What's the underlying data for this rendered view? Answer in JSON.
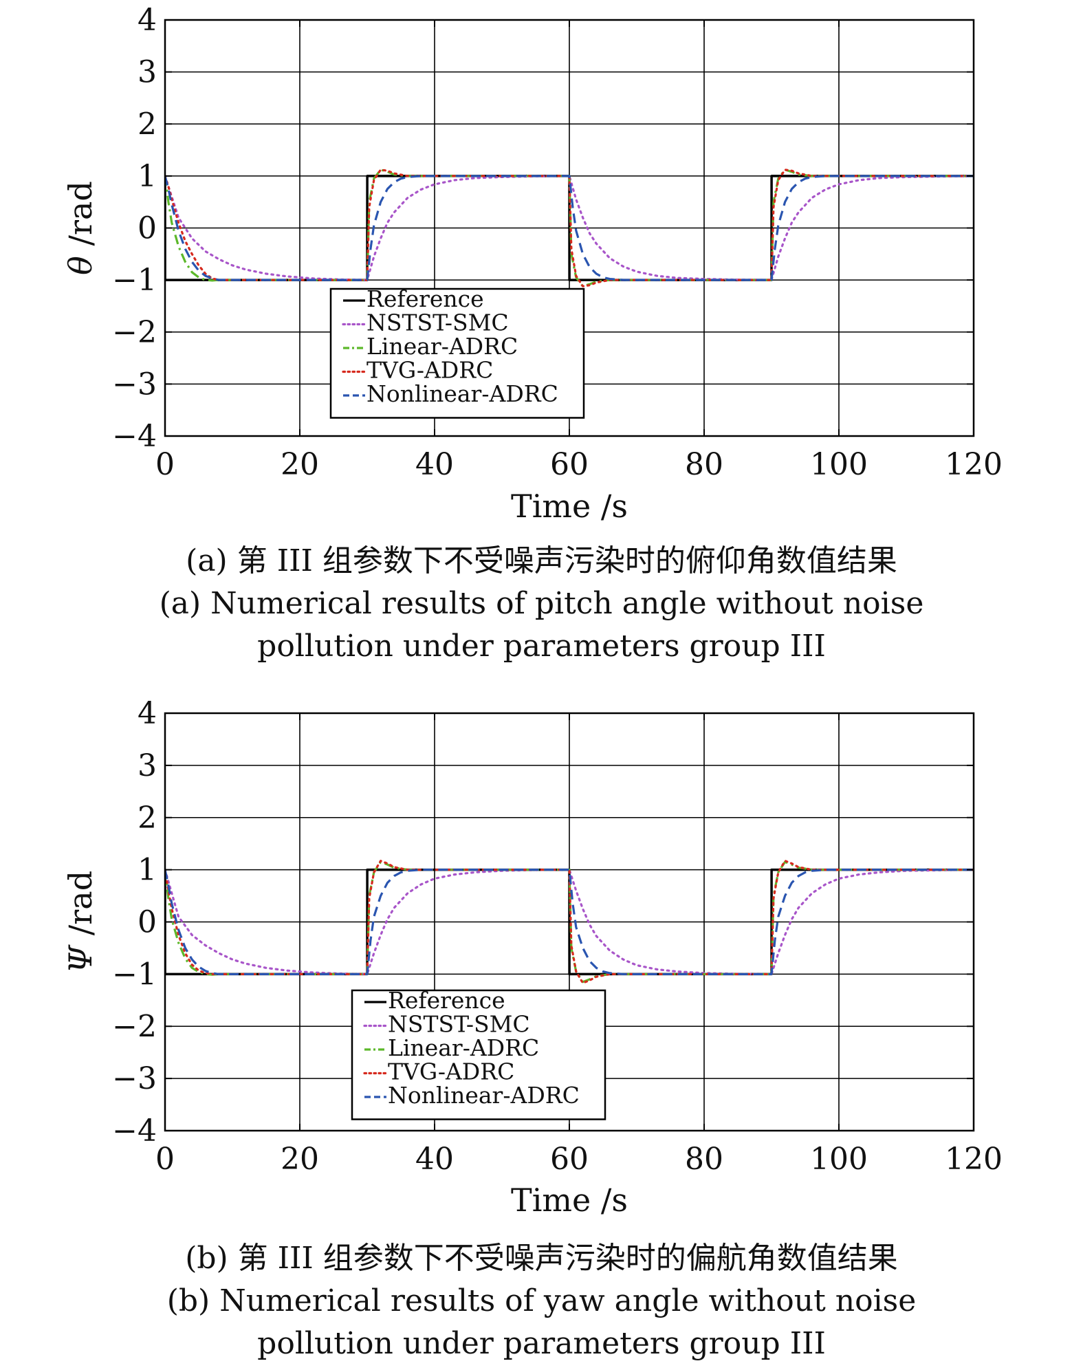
{
  "chart_data": [
    {
      "type": "line",
      "xlabel": "Time /s",
      "ylabel_symbol": "θ",
      "ylabel_unit": " /rad",
      "xlim": [
        0,
        120
      ],
      "ylim": [
        -4,
        4
      ],
      "xticks": [
        0,
        20,
        40,
        60,
        80,
        100,
        120
      ],
      "yticks": [
        -4,
        -3,
        -2,
        -1,
        0,
        1,
        2,
        3,
        4
      ],
      "grid": true,
      "legend_position": "lower-center",
      "caption_zh": "(a) 第 III 组参数下不受噪声污染时的俯仰角数值结果",
      "caption_en_line1": "(a) Numerical results of pitch angle without noise",
      "caption_en_line2": "pollution under  parameters group III",
      "series": [
        {
          "name": "Reference",
          "color": "#000000",
          "dash": "solid",
          "x": [
            0,
            0.01,
            30,
            30.01,
            60,
            60.01,
            90,
            90.01,
            120
          ],
          "y": [
            1,
            -1,
            -1,
            1,
            1,
            -1,
            -1,
            1,
            1
          ]
        },
        {
          "name": "NSTST-SMC",
          "color": "#a855c9",
          "dash": "dotted",
          "x": [
            0,
            2,
            4,
            6,
            8,
            10,
            12,
            15,
            18,
            22,
            26,
            30,
            31,
            32,
            33,
            34,
            36,
            38,
            40,
            43,
            46,
            50,
            55,
            60,
            61,
            62,
            63,
            64,
            66,
            68,
            70,
            73,
            76,
            80,
            85,
            90,
            91,
            92,
            93,
            94,
            96,
            98,
            100,
            103,
            106,
            110,
            120
          ],
          "y": [
            1,
            0.2,
            -0.2,
            -0.45,
            -0.6,
            -0.72,
            -0.8,
            -0.88,
            -0.93,
            -0.97,
            -0.99,
            -1,
            -0.55,
            -0.2,
            0.1,
            0.3,
            0.58,
            0.74,
            0.84,
            0.92,
            0.96,
            0.98,
            0.995,
            1,
            0.55,
            0.2,
            -0.1,
            -0.3,
            -0.58,
            -0.74,
            -0.84,
            -0.92,
            -0.96,
            -0.98,
            -0.995,
            -1,
            -0.55,
            -0.2,
            0.1,
            0.3,
            0.58,
            0.74,
            0.84,
            0.92,
            0.96,
            0.98,
            1
          ]
        },
        {
          "name": "Linear-ADRC",
          "color": "#5cb82a",
          "dash": "dashdot",
          "x": [
            0,
            0.5,
            1,
            2,
            3,
            4,
            5,
            6,
            7,
            8,
            10,
            30,
            30.3,
            31,
            32,
            33,
            34,
            36,
            38,
            40,
            60,
            60.3,
            61,
            62,
            63,
            64,
            66,
            68,
            70,
            90,
            90.3,
            91,
            92,
            93,
            94,
            96,
            98,
            100,
            120
          ],
          "y": [
            1,
            0.5,
            0.1,
            -0.35,
            -0.65,
            -0.85,
            -0.95,
            -1,
            -1.01,
            -1,
            -1,
            -1,
            0.5,
            0.95,
            1.12,
            1.08,
            1.03,
            1,
            1,
            1,
            1,
            -0.5,
            -0.95,
            -1.12,
            -1.08,
            -1.03,
            -1,
            -1,
            -1,
            -1,
            0.5,
            0.95,
            1.12,
            1.08,
            1.03,
            1,
            1,
            1,
            1
          ]
        },
        {
          "name": "TVG-ADRC",
          "color": "#d62a1e",
          "dash": "dotted",
          "x": [
            0,
            0.5,
            1,
            2,
            3,
            4,
            5,
            6,
            7,
            8,
            10,
            30,
            30.3,
            31,
            32,
            33,
            34,
            36,
            38,
            40,
            60,
            60.3,
            61,
            62,
            63,
            64,
            66,
            68,
            70,
            90,
            90.3,
            91,
            92,
            93,
            94,
            96,
            98,
            100,
            120
          ],
          "y": [
            1,
            0.8,
            0.55,
            0.1,
            -0.25,
            -0.5,
            -0.72,
            -0.88,
            -0.97,
            -1,
            -1,
            -1,
            0.4,
            0.92,
            1.12,
            1.1,
            1.05,
            1,
            1,
            1,
            1,
            -0.4,
            -0.92,
            -1.12,
            -1.1,
            -1.05,
            -1,
            -1,
            -1,
            -1,
            0.4,
            0.92,
            1.12,
            1.1,
            1.05,
            1,
            1,
            1,
            1
          ]
        },
        {
          "name": "Nonlinear-ADRC",
          "color": "#2a55b0",
          "dash": "dashed",
          "x": [
            0,
            0.5,
            1,
            2,
            3,
            4,
            5,
            6,
            7,
            8,
            10,
            30,
            30.5,
            31,
            32,
            33,
            34,
            35,
            36,
            38,
            40,
            60,
            60.5,
            61,
            62,
            63,
            64,
            65,
            66,
            68,
            70,
            90,
            90.5,
            91,
            92,
            93,
            94,
            95,
            96,
            98,
            100,
            120
          ],
          "y": [
            1,
            0.75,
            0.45,
            -0.05,
            -0.4,
            -0.65,
            -0.82,
            -0.92,
            -0.97,
            -1,
            -1,
            -1,
            -0.4,
            0.05,
            0.5,
            0.75,
            0.88,
            0.95,
            0.98,
            1,
            1,
            1,
            0.4,
            -0.05,
            -0.5,
            -0.75,
            -0.88,
            -0.95,
            -0.98,
            -1,
            -1,
            -1,
            -0.4,
            0.05,
            0.5,
            0.75,
            0.88,
            0.95,
            0.98,
            1,
            1,
            1
          ]
        }
      ]
    },
    {
      "type": "line",
      "xlabel": "Time /s",
      "ylabel_symbol": "Ψ",
      "ylabel_unit": " /rad",
      "xlim": [
        0,
        120
      ],
      "ylim": [
        -4,
        4
      ],
      "xticks": [
        0,
        20,
        40,
        60,
        80,
        100,
        120
      ],
      "yticks": [
        -4,
        -3,
        -2,
        -1,
        0,
        1,
        2,
        3,
        4
      ],
      "grid": true,
      "legend_position": "lower-center",
      "caption_zh": "(b) 第 III 组参数下不受噪声污染时的偏航角数值结果",
      "caption_en_line1": "(b) Numerical results of yaw angle without noise",
      "caption_en_line2": "pollution under  parameters group III",
      "series": [
        {
          "name": "Reference",
          "color": "#000000",
          "dash": "solid",
          "x": [
            0,
            0.01,
            30,
            30.01,
            60,
            60.01,
            90,
            90.01,
            120
          ],
          "y": [
            1,
            -1,
            -1,
            1,
            1,
            -1,
            -1,
            1,
            1
          ]
        },
        {
          "name": "NSTST-SMC",
          "color": "#a855c9",
          "dash": "dotted",
          "x": [
            0,
            2,
            4,
            6,
            8,
            10,
            12,
            15,
            18,
            22,
            26,
            30,
            31,
            32,
            33,
            34,
            36,
            38,
            40,
            43,
            46,
            50,
            55,
            60,
            61,
            62,
            63,
            64,
            66,
            68,
            70,
            73,
            76,
            80,
            85,
            90,
            91,
            92,
            93,
            94,
            96,
            98,
            100,
            103,
            106,
            110,
            120
          ],
          "y": [
            1,
            0.1,
            -0.25,
            -0.45,
            -0.6,
            -0.72,
            -0.8,
            -0.88,
            -0.93,
            -0.97,
            -0.99,
            -1,
            -0.6,
            -0.25,
            0.05,
            0.27,
            0.55,
            0.72,
            0.83,
            0.91,
            0.95,
            0.98,
            0.995,
            1,
            0.6,
            0.25,
            -0.05,
            -0.27,
            -0.55,
            -0.72,
            -0.83,
            -0.91,
            -0.95,
            -0.98,
            -0.995,
            -1,
            -0.6,
            -0.25,
            0.05,
            0.27,
            0.55,
            0.72,
            0.83,
            0.91,
            0.95,
            0.98,
            1
          ]
        },
        {
          "name": "Linear-ADRC",
          "color": "#5cb82a",
          "dash": "dashdot",
          "x": [
            0,
            0.5,
            1,
            2,
            3,
            4,
            5,
            6,
            7,
            8,
            10,
            30,
            30.3,
            31,
            32,
            33,
            34,
            36,
            38,
            40,
            60,
            60.3,
            61,
            62,
            63,
            64,
            66,
            68,
            70,
            90,
            90.3,
            91,
            92,
            93,
            94,
            96,
            98,
            100,
            120
          ],
          "y": [
            1,
            0.45,
            0.05,
            -0.4,
            -0.7,
            -0.88,
            -0.96,
            -1,
            -1.01,
            -1,
            -1,
            -1,
            0.5,
            0.95,
            1.15,
            1.1,
            1.04,
            1,
            1,
            1,
            1,
            -0.5,
            -0.95,
            -1.15,
            -1.1,
            -1.04,
            -1,
            -1,
            -1,
            -1,
            0.5,
            0.95,
            1.15,
            1.1,
            1.04,
            1,
            1,
            1,
            1
          ]
        },
        {
          "name": "TVG-ADRC",
          "color": "#d62a1e",
          "dash": "dotted",
          "x": [
            0,
            0.5,
            1,
            2,
            3,
            4,
            5,
            6,
            7,
            8,
            10,
            30,
            30.3,
            31,
            32,
            33,
            34,
            36,
            38,
            40,
            60,
            60.3,
            61,
            62,
            63,
            64,
            66,
            68,
            70,
            90,
            90.3,
            91,
            92,
            93,
            94,
            96,
            98,
            100,
            120
          ],
          "y": [
            1,
            0.6,
            0.25,
            -0.25,
            -0.6,
            -0.82,
            -0.93,
            -0.98,
            -1,
            -1,
            -1,
            -1,
            0.45,
            0.95,
            1.17,
            1.12,
            1.05,
            1,
            1,
            1,
            1,
            -0.45,
            -0.95,
            -1.17,
            -1.12,
            -1.05,
            -1,
            -1,
            -1,
            -1,
            0.45,
            0.95,
            1.17,
            1.12,
            1.05,
            1,
            1,
            1,
            1
          ]
        },
        {
          "name": "Nonlinear-ADRC",
          "color": "#2a55b0",
          "dash": "dashed",
          "x": [
            0,
            0.5,
            1,
            2,
            3,
            4,
            5,
            6,
            7,
            8,
            10,
            30,
            30.5,
            31,
            32,
            33,
            34,
            35,
            36,
            38,
            40,
            60,
            60.5,
            61,
            62,
            63,
            64,
            65,
            66,
            68,
            70,
            90,
            90.5,
            91,
            92,
            93,
            94,
            95,
            96,
            98,
            100,
            120
          ],
          "y": [
            1,
            0.7,
            0.35,
            -0.15,
            -0.5,
            -0.72,
            -0.86,
            -0.94,
            -0.98,
            -1,
            -1,
            -1,
            -0.35,
            0.1,
            0.5,
            0.75,
            0.88,
            0.95,
            0.98,
            1,
            1,
            1,
            0.35,
            -0.1,
            -0.5,
            -0.75,
            -0.88,
            -0.95,
            -0.98,
            -1,
            -1,
            -1,
            -0.35,
            0.1,
            0.5,
            0.75,
            0.88,
            0.95,
            0.98,
            1,
            1,
            1
          ]
        }
      ]
    }
  ]
}
